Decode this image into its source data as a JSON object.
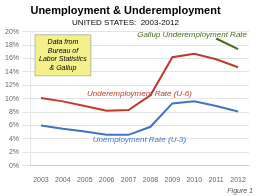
{
  "chart_data": {
    "type": "line",
    "title": "Unemployment & Underemployment",
    "subtitle": "UNITED STATES:  2003-2012",
    "x": [
      2003,
      2004,
      2005,
      2006,
      2007,
      2008,
      2009,
      2010,
      2011,
      2012
    ],
    "series": [
      {
        "name": "Unemployment Rate (U-3)",
        "color": "#4472c4",
        "values": [
          6.0,
          5.5,
          5.1,
          4.6,
          4.6,
          5.8,
          9.3,
          9.6,
          8.9,
          8.1
        ]
      },
      {
        "name": "Underemployment Rate (U-6)",
        "color": "#c0392b",
        "values": [
          10.1,
          9.6,
          8.9,
          8.2,
          8.3,
          10.5,
          16.2,
          16.7,
          15.9,
          14.7
        ]
      },
      {
        "name": "Gallup Underemployment Rate",
        "color": "#4a6b1a",
        "values": [
          null,
          null,
          null,
          null,
          null,
          null,
          null,
          null,
          19.0,
          17.4
        ]
      }
    ],
    "xlim": [
      2002.5,
      2012.5
    ],
    "xticks": [
      2003,
      2004,
      2005,
      2006,
      2007,
      2008,
      2009,
      2010,
      2011,
      2012
    ],
    "ylim": [
      0,
      20
    ],
    "yticks": [
      {
        "value": 0,
        "label": "0%"
      },
      {
        "value": 2,
        "label": "2%"
      },
      {
        "value": 4,
        "label": "4%"
      },
      {
        "value": 6,
        "label": "6%"
      },
      {
        "value": 8,
        "label": "8%"
      },
      {
        "value": 10,
        "label": "10%"
      },
      {
        "value": 12,
        "label": "12%"
      },
      {
        "value": 14,
        "label": "14%"
      },
      {
        "value": 16,
        "label": "16%"
      },
      {
        "value": 18,
        "label": "18%"
      },
      {
        "value": 20,
        "label": "20%"
      }
    ],
    "grid": "y",
    "annotations": [
      {
        "text": "Data from\nBureau of\nLabor Statistics\n& Gallup",
        "color": "#f5f08a"
      }
    ],
    "caption": "Figure 1"
  }
}
